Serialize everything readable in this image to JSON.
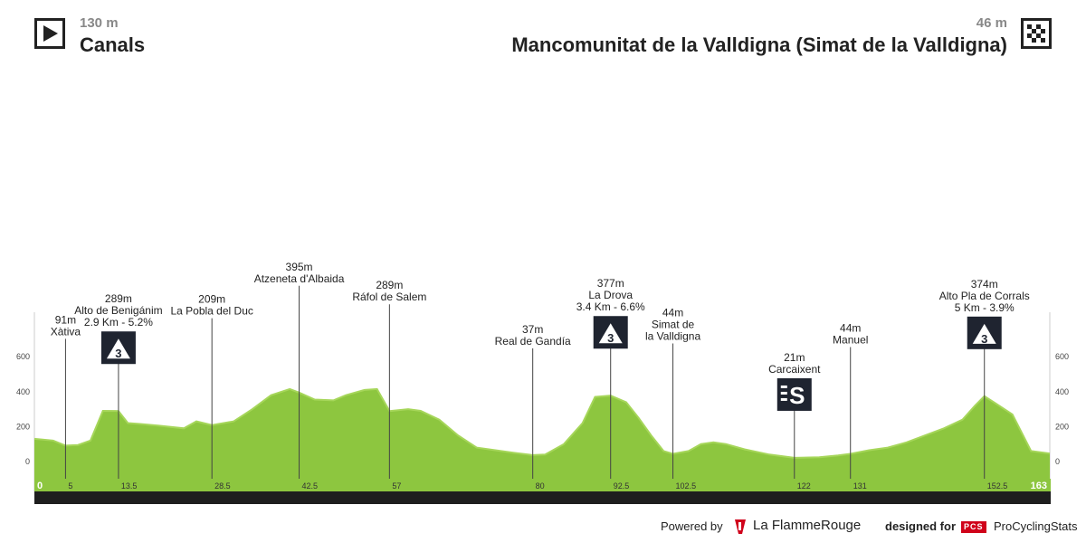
{
  "header": {
    "start": {
      "altitude": "130 m",
      "name": "Canals",
      "icon": "play-icon"
    },
    "finish": {
      "altitude": "46 m",
      "name": "Mancomunitat de la Valldigna (Simat de la Valldigna)",
      "icon": "checkered-flag-icon"
    }
  },
  "chart_data": {
    "type": "area",
    "title": "",
    "xlabel": "",
    "ylabel": "",
    "xlim": [
      0,
      163
    ],
    "ylim": [
      -150,
      850
    ],
    "y_ticks": [
      0,
      200,
      400,
      600
    ],
    "x_ticks": [
      "0",
      "5",
      "13.5",
      "28.5",
      "42.5",
      "57",
      "80",
      "92.5",
      "102.5",
      "122",
      "131",
      "152.5",
      "163"
    ],
    "colors": {
      "fill": "#8dc63f",
      "fill_light": "#a6d65a",
      "baseline": "#1e1e1e",
      "marker": "#1f2430"
    },
    "series": [
      {
        "x": [
          0,
          3,
          5,
          7,
          9,
          11,
          13.5,
          15,
          17,
          20,
          24,
          26,
          28.5,
          32,
          35,
          38,
          41,
          42.5,
          45,
          48,
          50,
          53,
          55,
          57,
          60,
          62,
          65,
          68,
          71,
          74,
          77,
          80,
          82,
          85,
          88,
          90,
          92.5,
          95,
          97,
          99,
          101,
          102.5,
          105,
          107,
          109,
          111,
          114,
          118,
          122,
          126,
          129,
          131,
          134,
          137,
          140,
          143,
          146,
          149,
          151,
          152.5,
          154,
          157,
          160,
          163
        ],
        "y": [
          130,
          120,
          91,
          95,
          120,
          290,
          289,
          220,
          215,
          205,
          190,
          230,
          209,
          230,
          300,
          380,
          415,
          395,
          355,
          350,
          380,
          410,
          415,
          289,
          300,
          290,
          240,
          150,
          80,
          65,
          50,
          37,
          40,
          100,
          220,
          370,
          377,
          340,
          250,
          150,
          60,
          44,
          60,
          100,
          110,
          100,
          70,
          40,
          21,
          25,
          35,
          44,
          65,
          80,
          110,
          150,
          190,
          240,
          320,
          374,
          340,
          270,
          60,
          46
        ]
      }
    ],
    "annotations": [
      {
        "km": 5,
        "alt": 91,
        "label_alt": "91m",
        "name_lines": [
          "Xàtiva"
        ]
      },
      {
        "km": 13.5,
        "alt": 289,
        "label_alt": "289m",
        "name_lines": [
          "Alto de Benigánim",
          "2.9 Km - 5.2%"
        ],
        "badge": "3"
      },
      {
        "km": 28.5,
        "alt": 209,
        "label_alt": "209m",
        "name_lines": [
          "La Pobla del Duc"
        ]
      },
      {
        "km": 42.5,
        "alt": 395,
        "label_alt": "395m",
        "name_lines": [
          "Atzeneta d'Albaida"
        ]
      },
      {
        "km": 57,
        "alt": 289,
        "label_alt": "289m",
        "name_lines": [
          "Ráfol de Salem"
        ]
      },
      {
        "km": 80,
        "alt": 37,
        "label_alt": "37m",
        "name_lines": [
          "Real de Gandía"
        ]
      },
      {
        "km": 92.5,
        "alt": 377,
        "label_alt": "377m",
        "name_lines": [
          "La Drova",
          "3.4 Km - 6.6%"
        ],
        "badge": "3"
      },
      {
        "km": 102.5,
        "alt": 44,
        "label_alt": "44m",
        "name_lines": [
          "Simat de",
          "la Valldigna"
        ]
      },
      {
        "km": 122,
        "alt": 21,
        "label_alt": "21m",
        "name_lines": [
          "Carcaixent"
        ],
        "badge": "S"
      },
      {
        "km": 131,
        "alt": 44,
        "label_alt": "44m",
        "name_lines": [
          "Manuel"
        ]
      },
      {
        "km": 152.5,
        "alt": 374,
        "label_alt": "374m",
        "name_lines": [
          "Alto Pla de Corrals",
          "5 Km - 3.9%"
        ],
        "badge": "3"
      }
    ]
  },
  "footer": {
    "powered_by": "Powered by",
    "partner_name": "La FlammeRouge",
    "designed_for": "designed for",
    "pcs_badge": "PCS",
    "pcs_name": "ProCyclingStats"
  }
}
